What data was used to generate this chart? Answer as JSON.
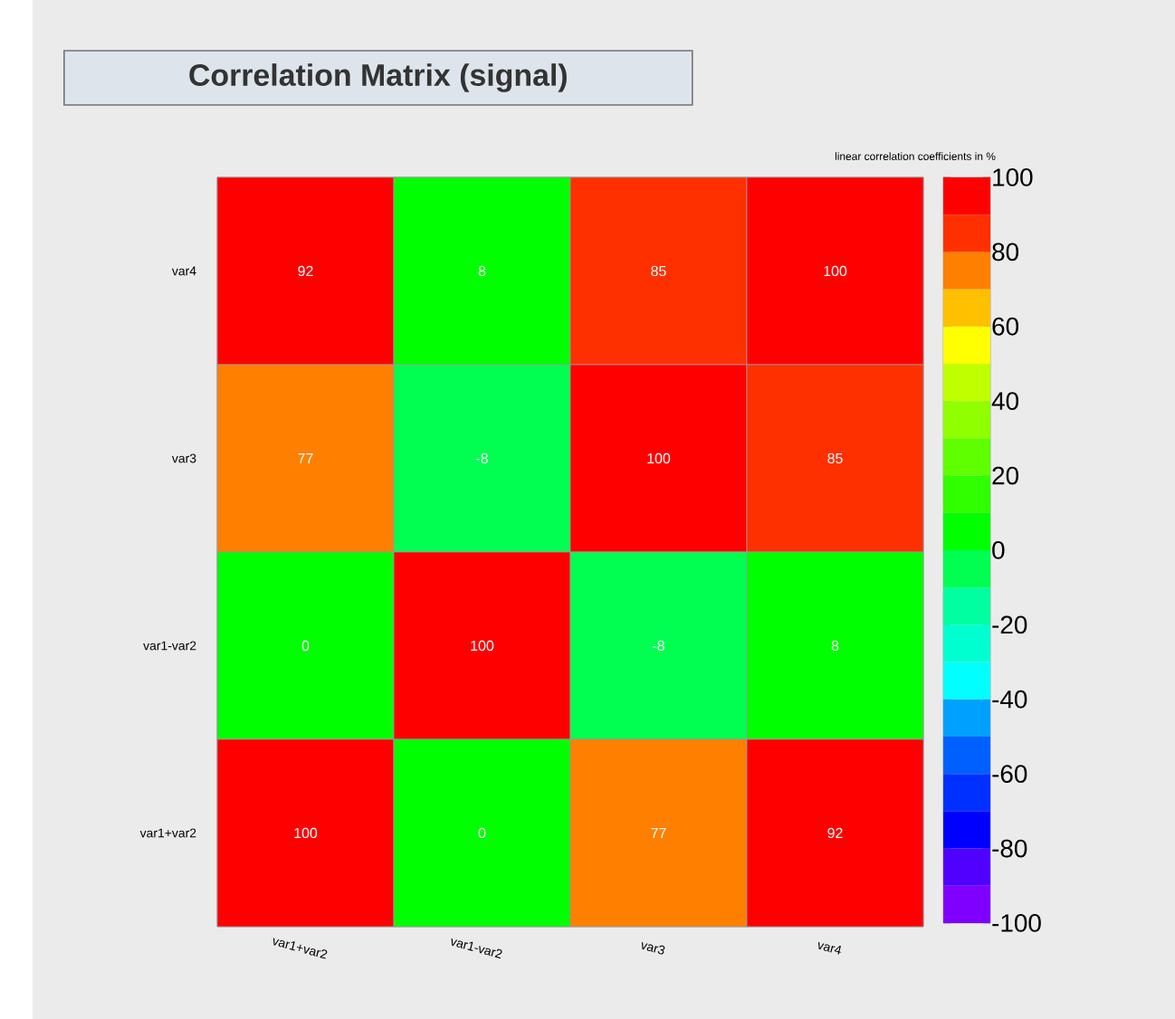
{
  "chart_data": {
    "type": "heatmap",
    "title": "Correlation Matrix (signal)",
    "clabel": "linear correlation coefficients in %",
    "categories": [
      "var1+var2",
      "var1-var2",
      "var3",
      "var4"
    ],
    "y_categories": [
      "var4",
      "var3",
      "var1-var2",
      "var1+var2"
    ],
    "cells": [
      [
        92,
        8,
        85,
        100
      ],
      [
        77,
        -8,
        100,
        85
      ],
      [
        0,
        100,
        -8,
        8
      ],
      [
        100,
        0,
        77,
        92
      ]
    ],
    "clim": [
      -100,
      100
    ],
    "cticks": [
      -100,
      -80,
      -60,
      -40,
      -20,
      0,
      20,
      40,
      60,
      80,
      100
    ],
    "data_labels": true
  }
}
